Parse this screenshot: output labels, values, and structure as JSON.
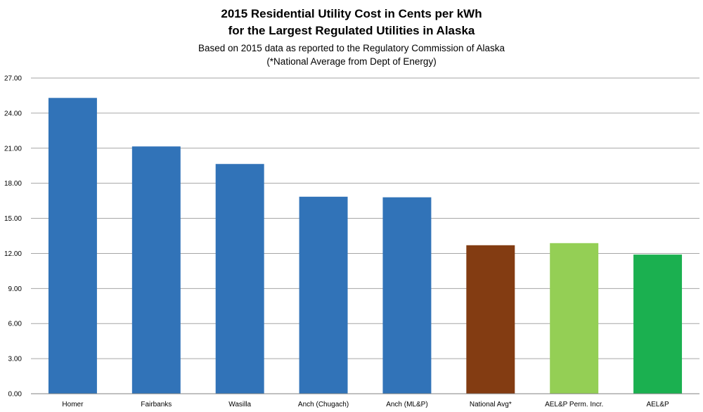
{
  "chart_data": {
    "type": "bar",
    "title": "2015 Residential Utility Cost in Cents per kWh",
    "title_line2": "for the Largest Regulated Utilities in Alaska",
    "subtitle": "Based on 2015 data as reported to the Regulatory Commission of Alaska",
    "subtitle_line2": "(*National Average from Dept of Energy)",
    "xlabel": "",
    "ylabel": "",
    "ylim": [
      0,
      27
    ],
    "yticks": [
      "0.00",
      "3.00",
      "6.00",
      "9.00",
      "12.00",
      "15.00",
      "18.00",
      "21.00",
      "24.00",
      "27.00"
    ],
    "grid": true,
    "legend": "none",
    "categories": [
      "Homer",
      "Fairbanks",
      "Wasilla",
      "Anch (Chugach)",
      "Anch (ML&P)",
      "National Avg*",
      "AEL&P Perm. Incr.",
      "AEL&P"
    ],
    "values": [
      25.3,
      21.15,
      19.65,
      16.85,
      16.8,
      12.7,
      12.88,
      11.9
    ],
    "colors": [
      "#3173b8",
      "#3173b8",
      "#3173b8",
      "#3173b8",
      "#3173b8",
      "#833c12",
      "#94cf55",
      "#1bb050"
    ]
  }
}
